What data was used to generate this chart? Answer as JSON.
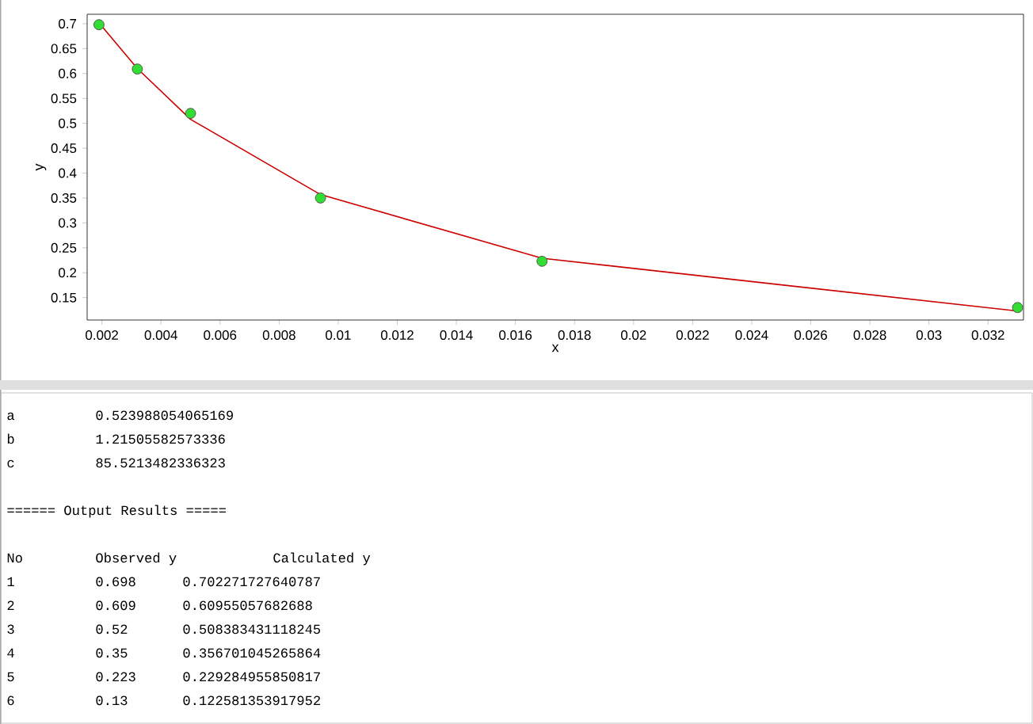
{
  "chart_data": {
    "type": "scatter",
    "xlabel": "x",
    "ylabel": "y",
    "series": [
      {
        "type": "scatter",
        "marker": "circle",
        "color": "#33dd33",
        "x": [
          0.0019,
          0.0032,
          0.005,
          0.0094,
          0.0169,
          0.033
        ],
        "values": [
          0.698,
          0.609,
          0.52,
          0.35,
          0.223,
          0.13
        ]
      },
      {
        "type": "line",
        "color": "#cc0000",
        "x": [
          0.0019,
          0.0032,
          0.005,
          0.0094,
          0.0169,
          0.033
        ],
        "values": [
          0.702,
          0.61,
          0.508,
          0.357,
          0.229,
          0.123
        ]
      }
    ],
    "xlim": [
      0.0015,
      0.0332
    ],
    "ylim": [
      0.105,
      0.719
    ],
    "xticks": [
      0.002,
      0.004,
      0.006,
      0.008,
      0.01,
      0.012,
      0.014,
      0.016,
      0.018,
      0.02,
      0.022,
      0.024,
      0.026,
      0.028,
      0.03,
      0.032
    ],
    "yticks": [
      0.15,
      0.2,
      0.25,
      0.3,
      0.35,
      0.4,
      0.45,
      0.5,
      0.55,
      0.6,
      0.65,
      0.7
    ],
    "annotations": [
      "a",
      "0.523988054065169",
      "b",
      "1.21505582573336",
      "c",
      "85.5213482336323",
      "====== Output Results =====",
      "No",
      "Observed y",
      "Calculated y",
      "1",
      "0.698",
      "0.702271727640787",
      "2",
      "0.609",
      "0.60955057682688",
      "3",
      "0.52",
      "0.508383431118245",
      "4",
      "0.35",
      "0.356701045265864",
      "5",
      "0.223",
      "0.229284955850817",
      "6",
      "0.13",
      "0.122581353917952"
    ]
  }
}
